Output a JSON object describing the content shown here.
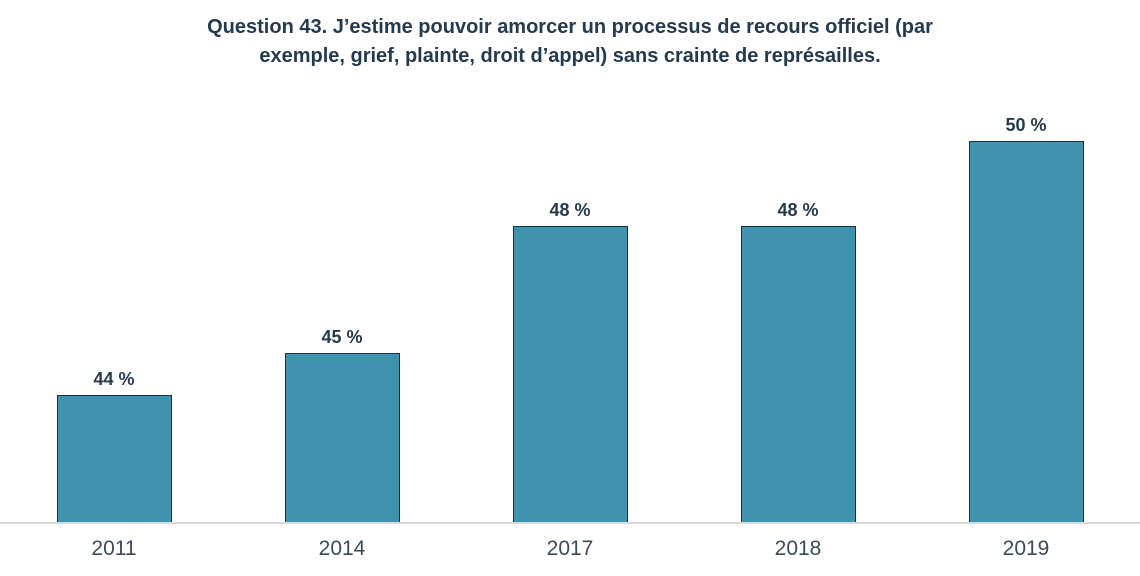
{
  "chart_data": {
    "type": "bar",
    "title": "Question 43. J’estime pouvoir amorcer un processus de recours officiel (par exemple, grief, plainte, droit d’appel) sans crainte de représailles.",
    "title_line1": "Question 43. J’estime pouvoir amorcer un processus de recours officiel (par",
    "title_line2": "exemple, grief, plainte, droit d’appel) sans crainte de représailles.",
    "categories": [
      "2011",
      "2014",
      "2017",
      "2018",
      "2019"
    ],
    "values": [
      44,
      45,
      48,
      48,
      50
    ],
    "value_labels": [
      "44 %",
      "45 %",
      "48 %",
      "48 %",
      "50 %"
    ],
    "unit": "%",
    "xlabel": "",
    "ylabel": "",
    "ylim": [
      41,
      51.2
    ],
    "grid": false,
    "legend": false,
    "colors": {
      "bar_fill": "#3F93AE",
      "bar_border": "#173248",
      "title_text": "#253A4D",
      "value_label_text": "#253A4D",
      "axis_label_text": "#3D4A57",
      "axis_line": "#D9D9D9",
      "background": "#FFFFFF"
    }
  }
}
